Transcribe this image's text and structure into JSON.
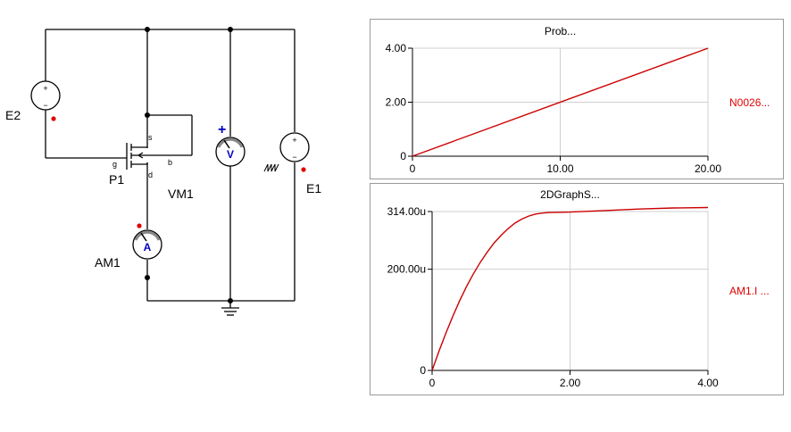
{
  "schematic": {
    "components": {
      "e2": "E2",
      "e1": "E1",
      "p1": "P1",
      "vm1": "VM1",
      "am1": "AM1"
    },
    "pins": {
      "gate": "g",
      "source": "s",
      "drain": "d",
      "bulk": "b"
    },
    "meter_symbols": {
      "voltmeter": "V",
      "ammeter": "A"
    },
    "source_polarity": {
      "plus": "+",
      "minus": "−"
    },
    "colors": {
      "wire": "#000000",
      "marker": "#e00000",
      "meter_text": "#0000c0"
    }
  },
  "chart_data": [
    {
      "type": "line",
      "title": "Prob...",
      "legend": "N0026...",
      "legend_position": "right",
      "grid": true,
      "xlim": [
        0,
        20
      ],
      "ylim": [
        0,
        4
      ],
      "xticks": [
        "0",
        "10.00",
        "20.00"
      ],
      "yticks": [
        "0",
        "2.00",
        "4.00"
      ],
      "color": "#cc0000",
      "series": [
        {
          "x": [
            0,
            20
          ],
          "y": [
            0,
            4
          ]
        }
      ]
    },
    {
      "type": "line",
      "title": "2DGraphS...",
      "legend": "AM1.I ...",
      "legend_position": "right",
      "grid": true,
      "xlim": [
        0,
        4
      ],
      "ylim": [
        0,
        314
      ],
      "xticks": [
        "0",
        "2.00",
        "4.00"
      ],
      "yticks": [
        "0",
        "200.00u",
        "314.00u"
      ],
      "color": "#cc0000",
      "series": [
        {
          "x": [
            0,
            0.1,
            0.2,
            0.3,
            0.4,
            0.5,
            0.6,
            0.7,
            0.8,
            0.9,
            1.0,
            1.1,
            1.2,
            1.3,
            1.4,
            1.5,
            1.6,
            1.7,
            2.0,
            2.5,
            3.0,
            3.5,
            4.0
          ],
          "y": [
            0,
            38,
            74,
            107,
            138,
            166,
            191,
            214,
            234,
            252,
            267,
            280,
            291,
            299,
            305,
            309,
            311,
            312,
            313,
            316,
            319,
            321,
            322
          ]
        }
      ]
    }
  ]
}
